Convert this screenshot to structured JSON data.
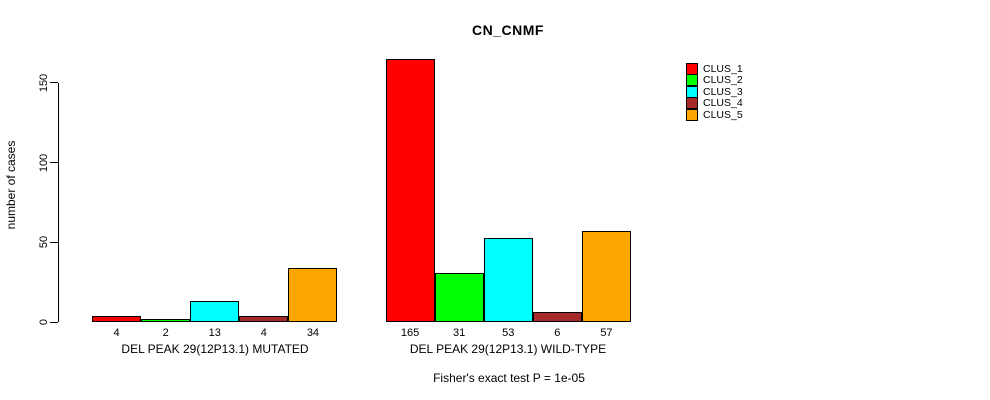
{
  "title": "CN_CNMF",
  "y_axis": {
    "label": "number of cases",
    "tick_labels": [
      "0",
      "50",
      "100",
      "150"
    ]
  },
  "legend": {
    "position": "top-right",
    "entries": [
      {
        "label": "CLUS_1",
        "color": "#FF0000"
      },
      {
        "label": "CLUS_2",
        "color": "#00FF00"
      },
      {
        "label": "CLUS_3",
        "color": "#00FFFF"
      },
      {
        "label": "CLUS_4",
        "color": "#A52A2A"
      },
      {
        "label": "CLUS_5",
        "color": "#FFA500"
      }
    ]
  },
  "chart_data": {
    "type": "bar",
    "title": "CN_CNMF",
    "xlabel": "",
    "ylabel": "number of cases",
    "ylim": [
      0,
      165
    ],
    "yticks": [
      0,
      50,
      100,
      150
    ],
    "grid": false,
    "legend_position": "top-right",
    "categories": [
      "DEL PEAK 29(12P13.1) MUTATED",
      "DEL PEAK 29(12P13.1) WILD-TYPE"
    ],
    "series": [
      {
        "name": "CLUS_1",
        "color": "#FF0000",
        "values": [
          4,
          165
        ]
      },
      {
        "name": "CLUS_2",
        "color": "#00FF00",
        "values": [
          2,
          31
        ]
      },
      {
        "name": "CLUS_3",
        "color": "#00FFFF",
        "values": [
          13,
          53
        ]
      },
      {
        "name": "CLUS_4",
        "color": "#A52A2A",
        "values": [
          4,
          6
        ]
      },
      {
        "name": "CLUS_5",
        "color": "#FFA500",
        "values": [
          34,
          57
        ]
      }
    ],
    "bar_value_labels": [
      [
        4,
        2,
        13,
        4,
        34
      ],
      [
        165,
        31,
        53,
        6,
        57
      ]
    ],
    "annotation": "Fisher's exact test P = 1e-05"
  }
}
